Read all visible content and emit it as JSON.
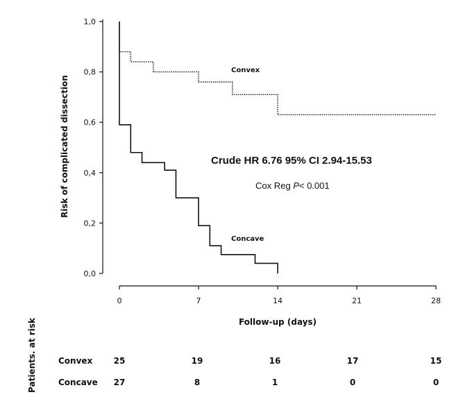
{
  "chart_data": {
    "type": "line",
    "step": true,
    "xlabel": "Follow-up (days)",
    "ylabel": "Risk of complicated dissection",
    "xlim": [
      0,
      28
    ],
    "ylim": [
      0,
      1
    ],
    "x_ticks": [
      "0",
      "7",
      "14",
      "21",
      "28"
    ],
    "y_ticks": [
      "0,0",
      "0,2",
      "0,4",
      "0,6",
      "0,8",
      "1,0"
    ],
    "grid": false,
    "series": [
      {
        "name": "Convex",
        "style": "dotted",
        "x": [
          0,
          1,
          3,
          7,
          10,
          14,
          28
        ],
        "y": [
          0.88,
          0.84,
          0.8,
          0.76,
          0.71,
          0.63,
          0.63
        ]
      },
      {
        "name": "Concave",
        "style": "solid",
        "x": [
          0,
          0,
          1,
          2,
          4,
          5,
          7,
          8,
          9,
          12,
          14
        ],
        "y": [
          1.0,
          0.59,
          0.48,
          0.44,
          0.41,
          0.3,
          0.19,
          0.11,
          0.075,
          0.04,
          0.0
        ]
      }
    ],
    "annotations": {
      "hr": "Crude HR 6.76 95% CI 2.94-15.53",
      "cox_prefix": "Cox Reg ",
      "cox_p": "P",
      "cox_suffix": "< 0.001"
    },
    "risk_table": {
      "title": "Patients. at risk",
      "rows": [
        {
          "label": "Convex",
          "values": [
            "25",
            "19",
            "16",
            "17",
            "15"
          ]
        },
        {
          "label": "Concave",
          "values": [
            "27",
            "8",
            "1",
            "0",
            "0"
          ]
        }
      ]
    }
  }
}
